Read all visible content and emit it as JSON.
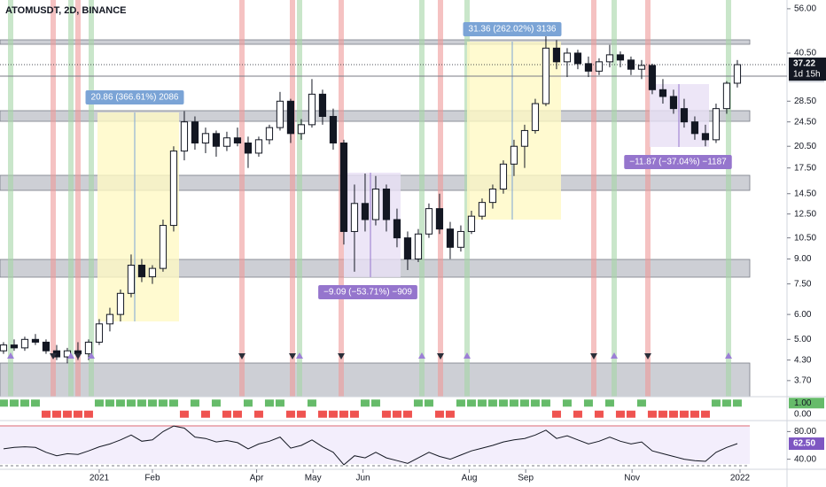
{
  "chart_data": [
    {
      "type": "candlestick",
      "title": "ATOMUSDT, 2D, BINANCE",
      "x": [
        0,
        1,
        2,
        3,
        4,
        5,
        6,
        7,
        8,
        9,
        10,
        11,
        12,
        13,
        14,
        15,
        16,
        17,
        18,
        19,
        20,
        21,
        22,
        23,
        24,
        25,
        26,
        27,
        28,
        29,
        30,
        31,
        32,
        33,
        34,
        35,
        36,
        37,
        38,
        39,
        40,
        41,
        42,
        43,
        44,
        45,
        46,
        47,
        48,
        49,
        50,
        51,
        52,
        53,
        54,
        55,
        56,
        57,
        58,
        59,
        60,
        61,
        62,
        63,
        64,
        65,
        66,
        67,
        68,
        69
      ],
      "open": [
        4.6,
        4.8,
        4.7,
        5.0,
        4.9,
        4.6,
        4.4,
        4.6,
        4.5,
        4.9,
        5.6,
        6.0,
        7.0,
        8.6,
        7.9,
        8.4,
        11.5,
        19.8,
        24.5,
        21.0,
        22.5,
        20.5,
        21.8,
        21.0,
        19.5,
        21.5,
        23.5,
        28.5,
        22.5,
        24.0,
        30.0,
        25.5,
        21.0,
        11.0,
        13.5,
        12.0,
        15.0,
        12.0,
        10.5,
        9.0,
        10.8,
        13.0,
        11.2,
        9.8,
        11.0,
        12.3,
        13.6,
        15.0,
        18.0,
        20.5,
        23.0,
        28.0,
        42.0,
        38.0,
        40.5,
        37.5,
        35.5,
        38.0,
        40.0,
        38.5,
        36.0,
        37.0,
        31.0,
        29.5,
        27.0,
        24.5,
        22.5,
        21.5,
        27.0,
        32.5
      ],
      "high": [
        4.9,
        5.0,
        5.1,
        5.2,
        5.0,
        4.8,
        4.7,
        4.9,
        5.0,
        5.8,
        6.3,
        7.2,
        9.3,
        9.0,
        8.6,
        12.0,
        20.5,
        26.5,
        25.5,
        23.5,
        23.0,
        22.8,
        23.5,
        22.0,
        22.0,
        24.0,
        30.5,
        29.0,
        25.0,
        33.5,
        31.0,
        27.0,
        21.5,
        15.5,
        16.8,
        16.5,
        15.5,
        13.0,
        11.0,
        11.2,
        13.5,
        14.5,
        11.8,
        11.5,
        12.8,
        14.0,
        15.5,
        18.5,
        21.5,
        24.0,
        29.0,
        46.0,
        44.5,
        42.0,
        41.5,
        39.5,
        39.0,
        43.0,
        41.0,
        39.5,
        38.5,
        37.5,
        33.5,
        31.0,
        29.0,
        25.5,
        24.0,
        28.0,
        33.0,
        38.5
      ],
      "low": [
        4.5,
        4.6,
        4.6,
        4.8,
        4.5,
        4.3,
        4.2,
        4.3,
        4.3,
        4.8,
        5.3,
        5.7,
        6.8,
        7.6,
        7.5,
        8.2,
        11.0,
        18.5,
        20.0,
        19.5,
        19.0,
        19.8,
        20.5,
        17.5,
        19.0,
        20.8,
        23.0,
        21.0,
        21.5,
        23.5,
        24.0,
        20.0,
        10.0,
        8.2,
        11.0,
        11.5,
        11.0,
        9.8,
        8.3,
        8.8,
        10.5,
        10.8,
        9.0,
        9.5,
        10.8,
        12.0,
        13.0,
        14.5,
        16.5,
        17.5,
        22.5,
        27.5,
        36.0,
        34.0,
        36.0,
        34.0,
        34.5,
        36.5,
        36.5,
        34.5,
        33.5,
        30.0,
        28.0,
        26.0,
        23.5,
        21.5,
        20.5,
        21.0,
        26.0,
        31.5
      ],
      "close": [
        4.8,
        4.7,
        5.0,
        4.9,
        4.6,
        4.4,
        4.6,
        4.5,
        4.9,
        5.6,
        6.0,
        7.0,
        8.6,
        7.9,
        8.4,
        11.5,
        19.8,
        24.5,
        21.0,
        22.5,
        20.5,
        21.8,
        21.0,
        19.5,
        21.5,
        23.5,
        28.5,
        22.5,
        24.0,
        30.0,
        25.5,
        21.0,
        11.0,
        13.5,
        12.0,
        15.0,
        12.0,
        10.5,
        9.0,
        10.8,
        13.0,
        11.2,
        9.8,
        11.0,
        12.3,
        13.6,
        15.0,
        18.0,
        20.5,
        23.0,
        28.0,
        42.0,
        38.0,
        40.5,
        37.5,
        35.5,
        38.0,
        40.0,
        38.5,
        36.0,
        37.0,
        31.0,
        29.5,
        27.0,
        24.5,
        22.5,
        21.5,
        27.0,
        32.5,
        37.22
      ],
      "xlim": [
        -0.33,
        73.67
      ],
      "ylim": [
        3.29,
        59.7
      ],
      "log_scale": true,
      "yticks": [
        {
          "value": 56,
          "label": "56.00"
        },
        {
          "value": 40.5,
          "label": "40.50"
        },
        {
          "value": 28.5,
          "label": "28.50"
        },
        {
          "value": 24.5,
          "label": "24.50"
        },
        {
          "value": 20.5,
          "label": "20.50"
        },
        {
          "value": 17.5,
          "label": "17.50"
        },
        {
          "value": 14.5,
          "label": "14.50"
        },
        {
          "value": 12.5,
          "label": "12.50"
        },
        {
          "value": 10.5,
          "label": "10.50"
        },
        {
          "value": 9,
          "label": "9.00"
        },
        {
          "value": 7.5,
          "label": "7.50"
        },
        {
          "value": 6,
          "label": "6.00"
        },
        {
          "value": 5,
          "label": "5.00"
        },
        {
          "value": 4.3,
          "label": "4.30"
        },
        {
          "value": 3.7,
          "label": "3.70"
        }
      ],
      "xticks": [
        {
          "value": 9,
          "label": "2021"
        },
        {
          "value": 14,
          "label": "Feb"
        },
        {
          "value": 23.8,
          "label": "Apr"
        },
        {
          "value": 29.1,
          "label": "May"
        },
        {
          "value": 33.8,
          "label": "Jun"
        },
        {
          "value": 43.8,
          "label": "Aug"
        },
        {
          "value": 49.1,
          "label": "Sep"
        },
        {
          "value": 59.1,
          "label": "Nov"
        },
        {
          "value": 69.25,
          "label": "2022"
        }
      ],
      "price_line": 34.23,
      "countdown": "1d 15h",
      "annotations": [
        "20.86 (366.61%) 2086",
        "31.36 (262.02%) 3136",
        "−9.09 (−53.71%) −909",
        "−11.87 (−37.04%) −1187"
      ],
      "up_color": "#ffffff",
      "down_color": "#131722"
    },
    {
      "type": "binary",
      "values": [
        1,
        1,
        1,
        1,
        0,
        0,
        0,
        0,
        0,
        1,
        1,
        1,
        1,
        1,
        1,
        1,
        1,
        0,
        1,
        0,
        1,
        0,
        0,
        1,
        0,
        1,
        1,
        0,
        0,
        1,
        0,
        0,
        0,
        0,
        1,
        1,
        0,
        0,
        0,
        1,
        1,
        0,
        0,
        1,
        1,
        1,
        1,
        1,
        1,
        1,
        1,
        1,
        0,
        1,
        0,
        1,
        0,
        1,
        0,
        0,
        1,
        0,
        0,
        0,
        0,
        0,
        0,
        1,
        1,
        1
      ],
      "ylim": [
        -0.5,
        1.5
      ],
      "yticks": [
        {
          "value": 1,
          "label": "1.00"
        },
        {
          "value": 0,
          "label": "0.00"
        }
      ],
      "on_color": "#66bb6a",
      "off_color": "#ef5350"
    },
    {
      "type": "line",
      "values": [
        55,
        57,
        58,
        57,
        50,
        45,
        48,
        47,
        52,
        58,
        62,
        68,
        75,
        66,
        68,
        80,
        88,
        85,
        72,
        70,
        65,
        67,
        64,
        55,
        62,
        66,
        72,
        56,
        60,
        68,
        58,
        50,
        32,
        45,
        42,
        50,
        42,
        38,
        34,
        42,
        50,
        44,
        40,
        46,
        52,
        56,
        60,
        65,
        68,
        70,
        75,
        82,
        70,
        74,
        68,
        62,
        66,
        72,
        66,
        62,
        65,
        52,
        48,
        44,
        40,
        38,
        37,
        50,
        57,
        62.5
      ],
      "value_labels": [
        null,
        null,
        null,
        null,
        null,
        null,
        null,
        null,
        null,
        null,
        null,
        null,
        null,
        null,
        null,
        null,
        null,
        null,
        null,
        null,
        null,
        null,
        null,
        null,
        null,
        null,
        null,
        null,
        null,
        null,
        null,
        null,
        null,
        null,
        null,
        null,
        null,
        null,
        null,
        null,
        null,
        null,
        null,
        null,
        null,
        null,
        null,
        null,
        null,
        null,
        null,
        null,
        null,
        null,
        null,
        null,
        null,
        null,
        null,
        null,
        null,
        null,
        null,
        null,
        null,
        null,
        null,
        null,
        null,
        "62.50"
      ],
      "ylim": [
        26.7,
        93.3
      ],
      "yticks": [
        {
          "value": 80,
          "label": "80.00"
        },
        {
          "value": 40,
          "label": "40.00"
        }
      ],
      "color": "#131722"
    }
  ]
}
